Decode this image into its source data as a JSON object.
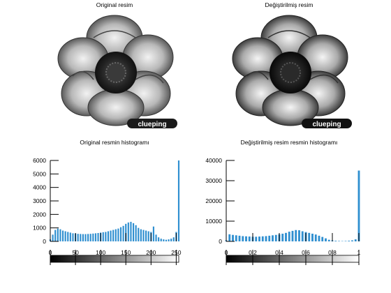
{
  "panels": {
    "top_left_title": "Original resim",
    "top_right_title": "Değiştirilmiş resim",
    "watermark_text": "clueping"
  },
  "chart_data": [
    {
      "type": "bar",
      "title": "Original resmin histogramı",
      "xlabel": "",
      "ylabel": "",
      "xlim": [
        0,
        255
      ],
      "ylim": [
        0,
        6000
      ],
      "xticks": [
        0,
        50,
        100,
        150,
        200,
        250
      ],
      "yticks": [
        0,
        1000,
        2000,
        3000,
        4000,
        5000,
        6000
      ],
      "bar_color": "#2f8fd0",
      "colorbar": "grayscale 0-255",
      "x": [
        0,
        5,
        10,
        15,
        20,
        25,
        30,
        35,
        40,
        45,
        50,
        55,
        60,
        65,
        70,
        75,
        80,
        85,
        90,
        95,
        100,
        105,
        110,
        115,
        120,
        125,
        130,
        135,
        140,
        145,
        150,
        155,
        160,
        165,
        170,
        175,
        180,
        185,
        190,
        195,
        200,
        205,
        210,
        215,
        220,
        225,
        230,
        235,
        240,
        245,
        250,
        255
      ],
      "values": [
        150,
        500,
        850,
        950,
        900,
        800,
        750,
        700,
        650,
        600,
        580,
        560,
        550,
        540,
        540,
        550,
        560,
        580,
        600,
        620,
        650,
        680,
        700,
        750,
        800,
        850,
        900,
        950,
        1050,
        1150,
        1300,
        1400,
        1450,
        1350,
        1200,
        1000,
        900,
        850,
        800,
        750,
        700,
        1100,
        500,
        300,
        200,
        150,
        120,
        150,
        200,
        300,
        700,
        6100
      ]
    },
    {
      "type": "bar",
      "title": "Değiştirilmiş resim resmin histogramı",
      "xlabel": "",
      "ylabel": "",
      "xlim": [
        0,
        1
      ],
      "ylim": [
        0,
        40000
      ],
      "xticks": [
        0,
        0.2,
        0.4,
        0.6,
        0.8,
        1
      ],
      "yticks": [
        0,
        10000,
        20000,
        30000,
        40000
      ],
      "bar_color": "#2f8fd0",
      "colorbar": "grayscale 0-1",
      "x": [
        0.0,
        0.025,
        0.05,
        0.075,
        0.1,
        0.125,
        0.15,
        0.175,
        0.2,
        0.225,
        0.25,
        0.275,
        0.3,
        0.325,
        0.35,
        0.375,
        0.4,
        0.425,
        0.45,
        0.475,
        0.5,
        0.525,
        0.55,
        0.575,
        0.6,
        0.625,
        0.65,
        0.675,
        0.7,
        0.725,
        0.75,
        0.775,
        0.8,
        0.825,
        0.85,
        0.875,
        0.9,
        0.925,
        0.95,
        0.975,
        1.0
      ],
      "values": [
        500,
        3500,
        3200,
        3000,
        2800,
        2600,
        2500,
        2400,
        2300,
        2300,
        2400,
        2500,
        2600,
        2800,
        3000,
        3200,
        3500,
        3800,
        4200,
        4800,
        5200,
        5600,
        5500,
        5000,
        4600,
        4200,
        3800,
        3400,
        2800,
        2200,
        1500,
        800,
        500,
        300,
        200,
        150,
        200,
        300,
        500,
        1000,
        35000
      ]
    }
  ]
}
